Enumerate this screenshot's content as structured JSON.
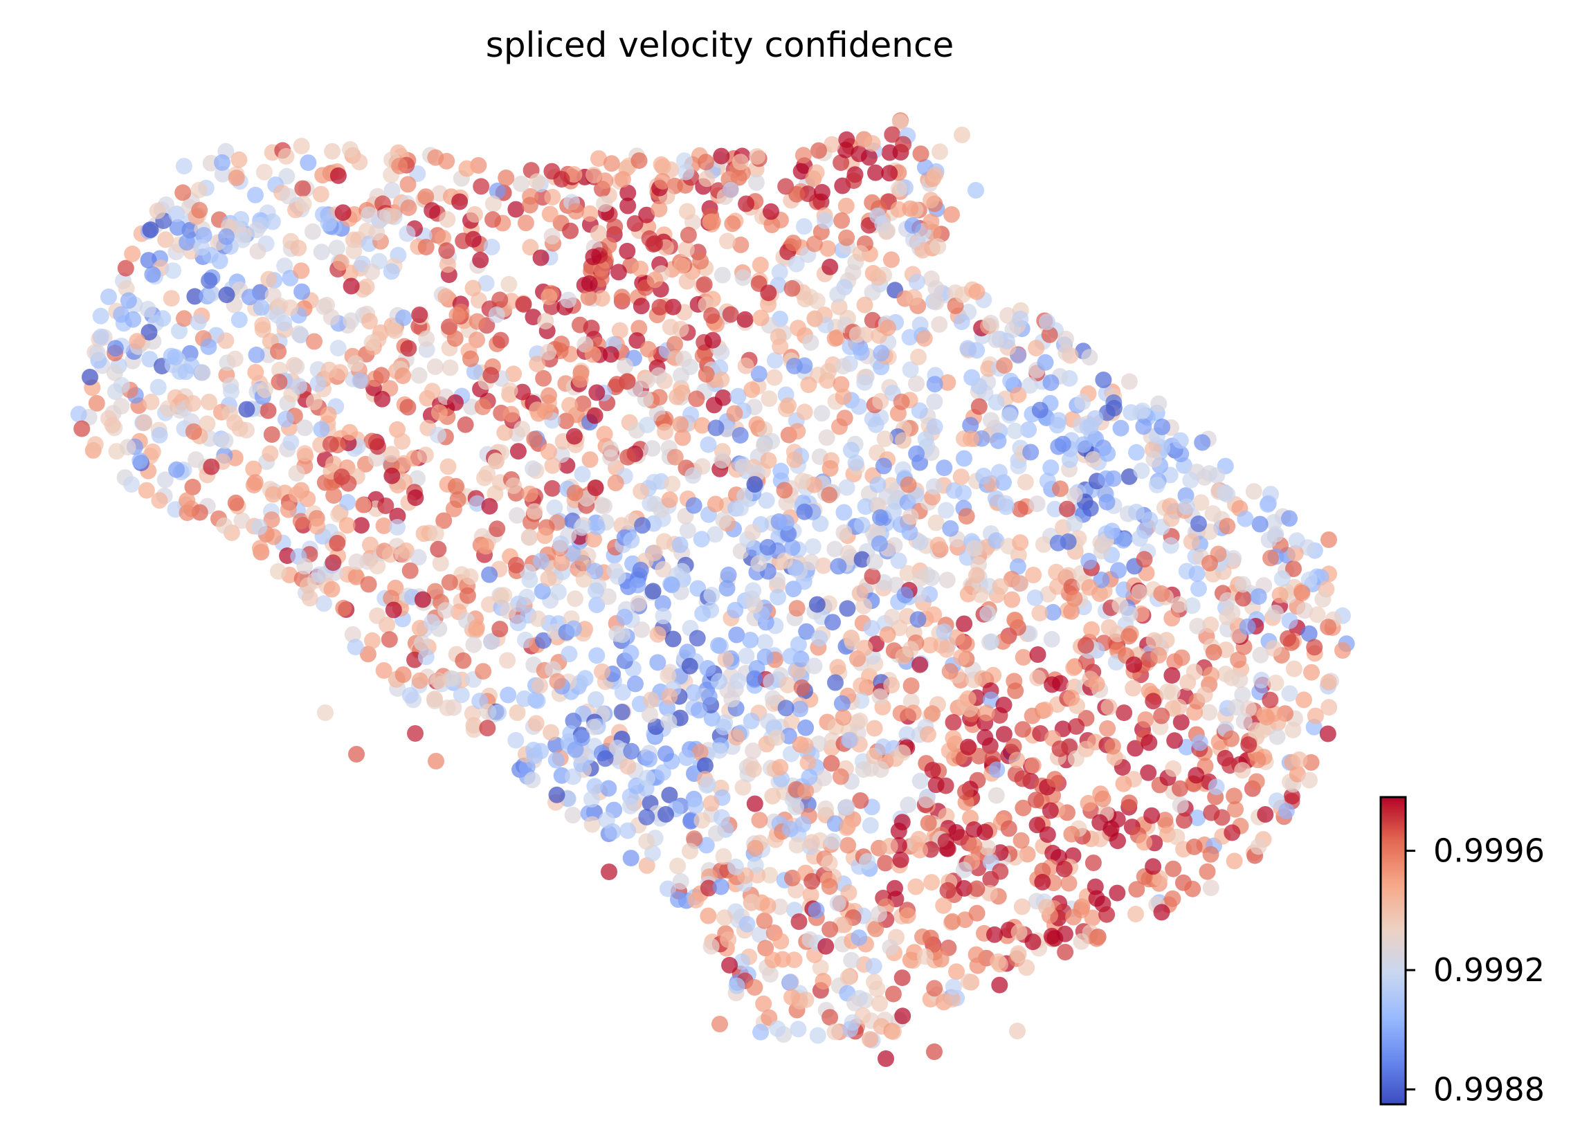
{
  "chart_data": {
    "type": "scatter",
    "title": "spliced velocity confidence",
    "xlabel": "",
    "ylabel": "",
    "axes_visible": false,
    "grid": false,
    "colormap": "coolwarm",
    "colormap_stops": [
      "#3b4cc0",
      "#6788ee",
      "#9abbff",
      "#c9d7f0",
      "#edd1c2",
      "#f7a889",
      "#e26952",
      "#b40426"
    ],
    "point_alpha": 0.7,
    "color_range": [
      0.99875,
      0.99978
    ],
    "colorbar": {
      "placement": "lower-right",
      "ticks": [
        0.9988,
        0.9992,
        0.9996
      ],
      "tick_labels": [
        "0.9988",
        "0.9992",
        "0.9996"
      ]
    },
    "point_count_estimate": 3500,
    "distribution_note": "Dense cloud of cells; high-confidence (red) regions at upper-centre and lower-right, low-confidence (blue) cells along the left edge, the diagonal centre band and the right flank."
  }
}
